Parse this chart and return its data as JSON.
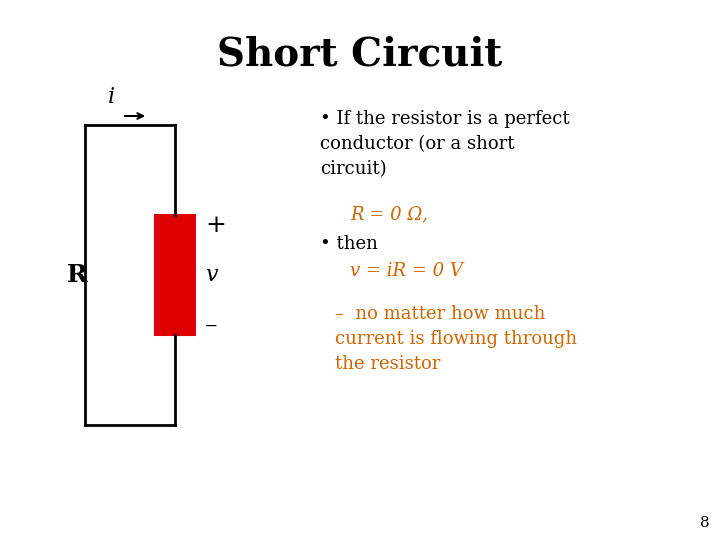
{
  "title": "Short Circuit",
  "title_fontsize": 28,
  "title_fontweight": "bold",
  "background_color": "#ffffff",
  "text_color": "#000000",
  "orange_color": "#cc6600",
  "red_color": "#cc0000",
  "bullet1": "If the resistor is a perfect\nconductor (or a short\ncircuit)",
  "bullet1_eq": "R = 0 Ω,",
  "bullet2": "then",
  "bullet2_eq": "v = iR = 0 V",
  "dash_note": "–  no matter how much\ncurrent is flowing through\nthe resistor",
  "page_number": "8",
  "circuit": {
    "wire_color": "#000000",
    "resistor_color": "#dd0000",
    "label_i": "i",
    "label_R": "R",
    "label_v": "v",
    "label_plus": "+",
    "label_minus": "–"
  }
}
